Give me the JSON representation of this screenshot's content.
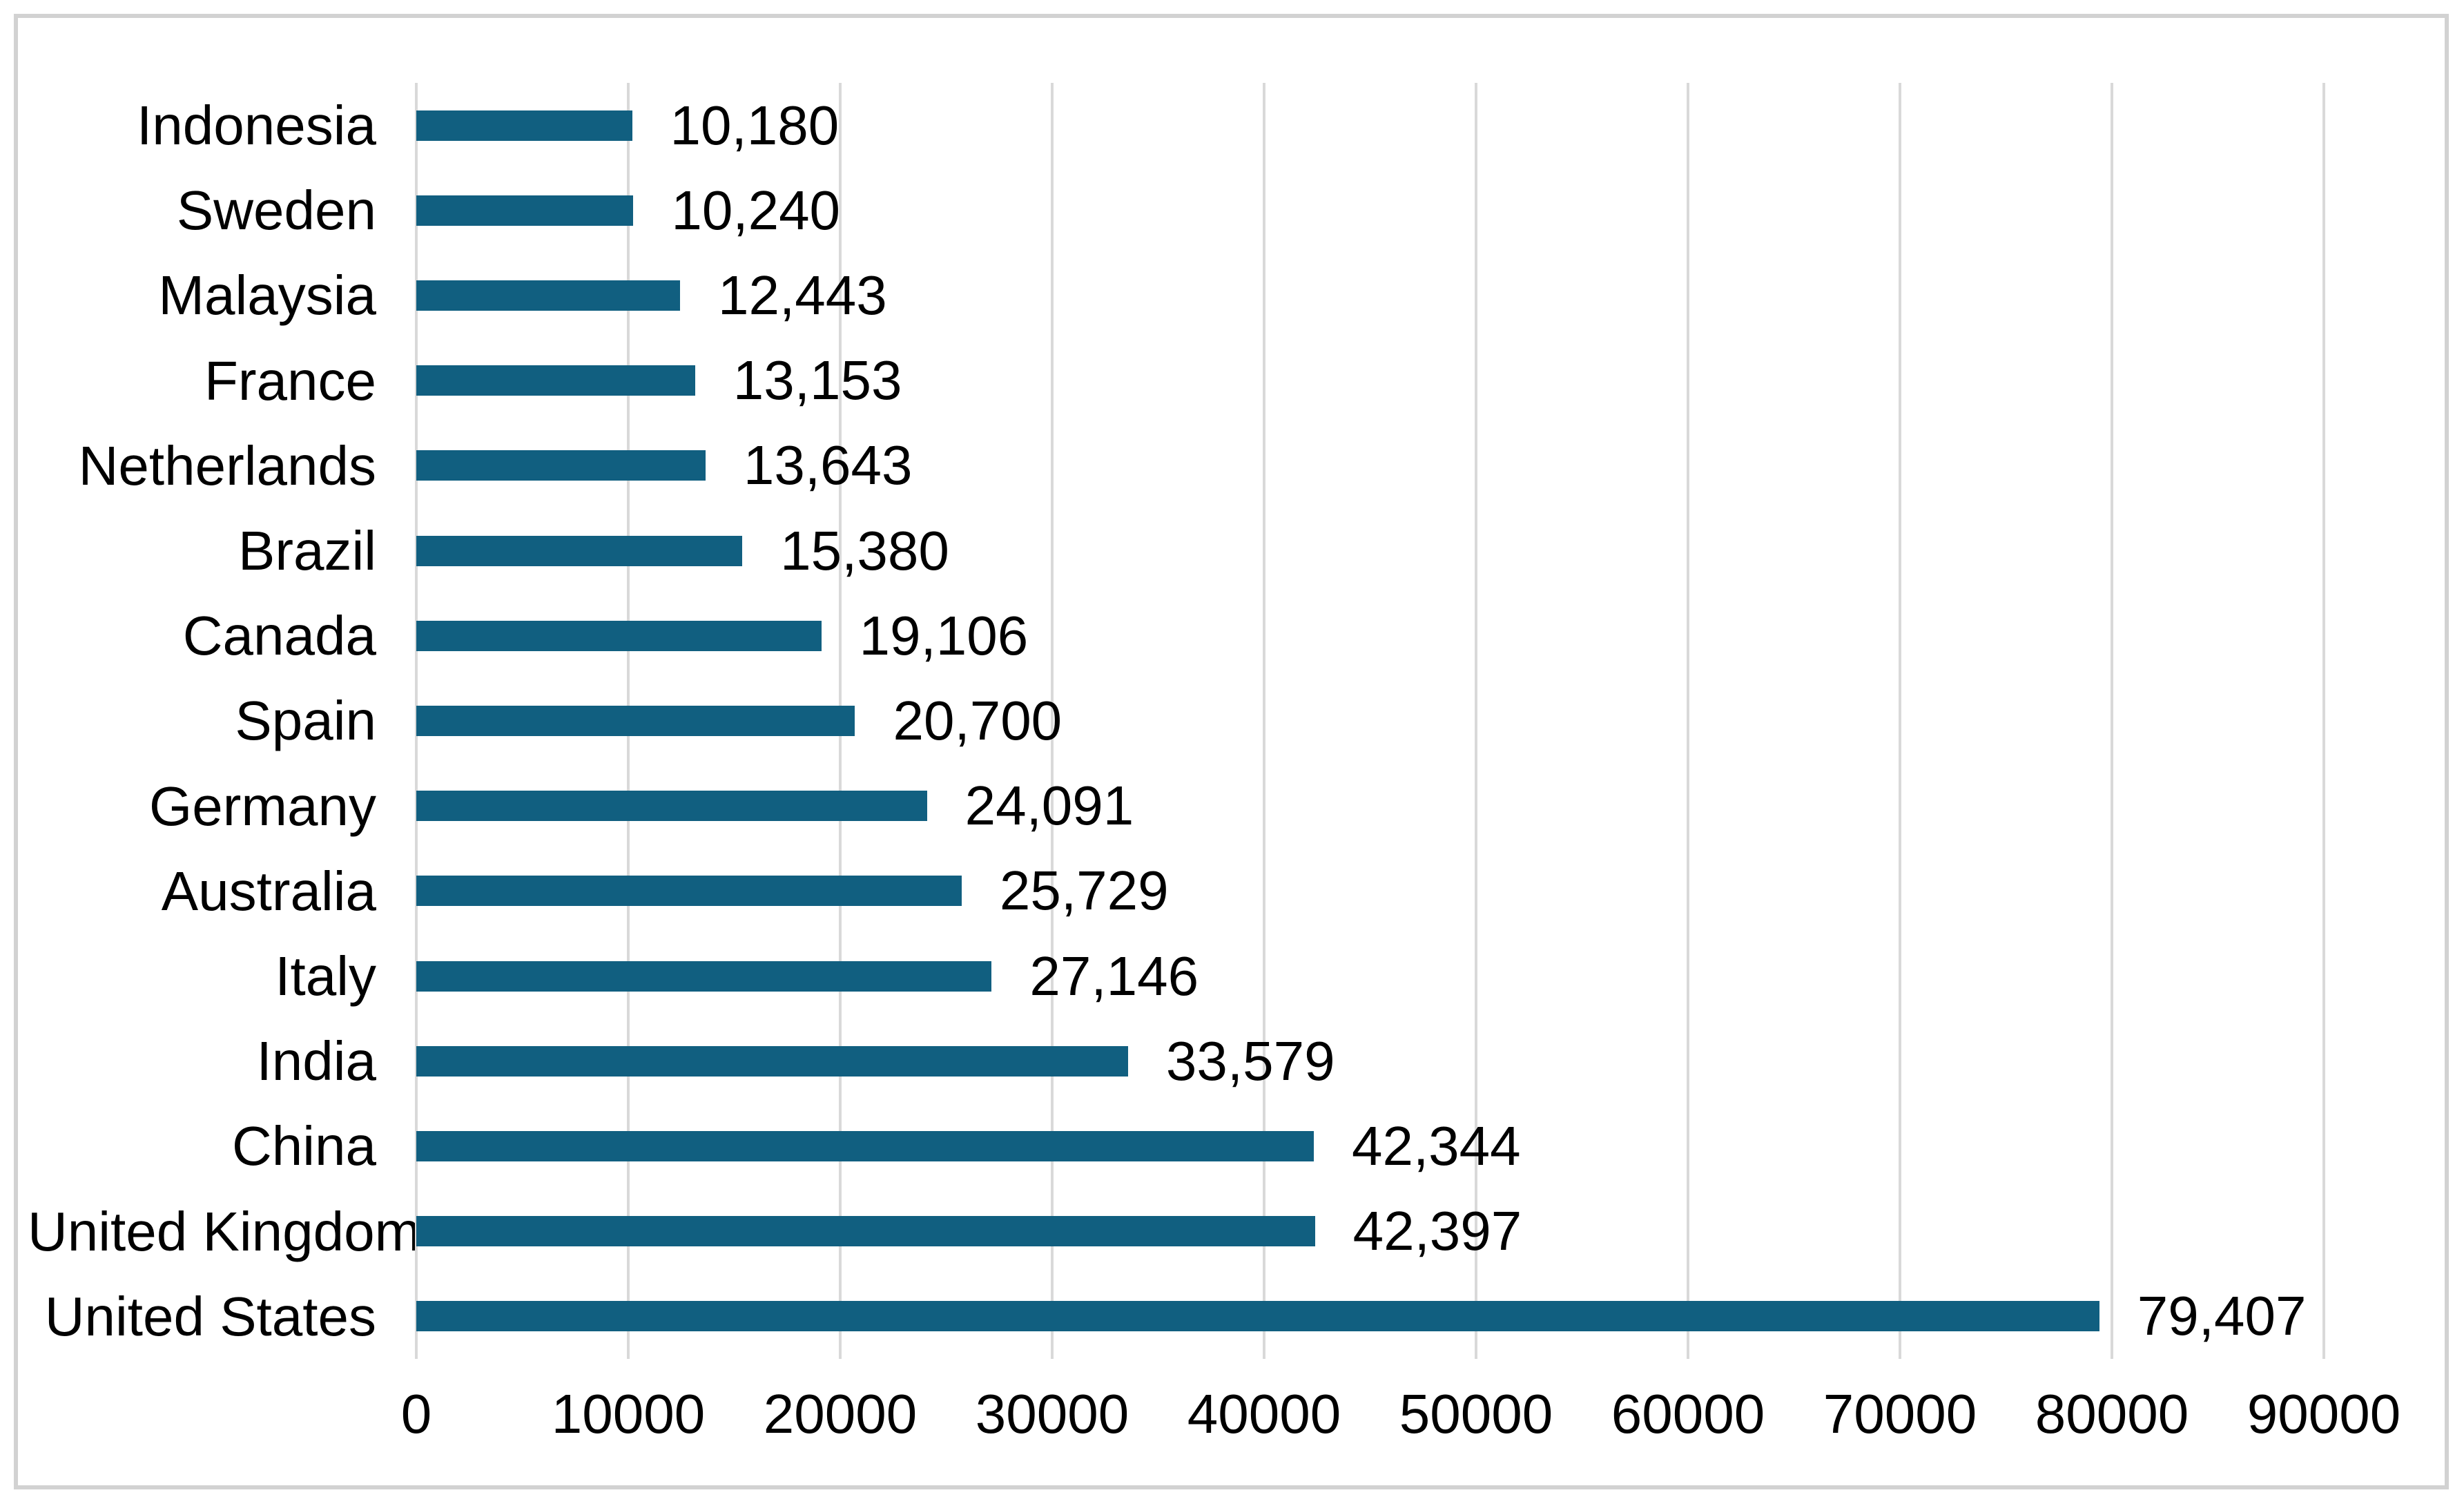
{
  "chart_data": {
    "type": "bar",
    "orientation": "horizontal",
    "title": "",
    "xlabel": "",
    "ylabel": "",
    "legend": "none",
    "grid": "vertical",
    "xlim": [
      0,
      90000
    ],
    "x_tick_step": 10000,
    "x_tick_labels": [
      "0",
      "10000",
      "20000",
      "30000",
      "40000",
      "50000",
      "60000",
      "70000",
      "80000",
      "90000"
    ],
    "categories": [
      "Indonesia",
      "Sweden",
      "Malaysia",
      "France",
      "Netherlands",
      "Brazil",
      "Canada",
      "Spain",
      "Germany",
      "Australia",
      "Italy",
      "India",
      "China",
      "United Kingdom",
      "United States"
    ],
    "values": [
      10180,
      10240,
      12443,
      13153,
      13643,
      15380,
      19106,
      20700,
      24091,
      25729,
      27146,
      33579,
      42344,
      42397,
      79407
    ],
    "value_labels": [
      "10,180",
      "10,240",
      "12,443",
      "13,153",
      "13,643",
      "15,380",
      "19,106",
      "20,700",
      "24,091",
      "25,729",
      "27,146",
      "33,579",
      "42,344",
      "42,397",
      "79,407"
    ],
    "colors": {
      "bar": "#115F80",
      "gridline": "#d9d9d9",
      "text": "#000000",
      "frame_border": "#d2d2d2",
      "background": "#ffffff"
    }
  }
}
